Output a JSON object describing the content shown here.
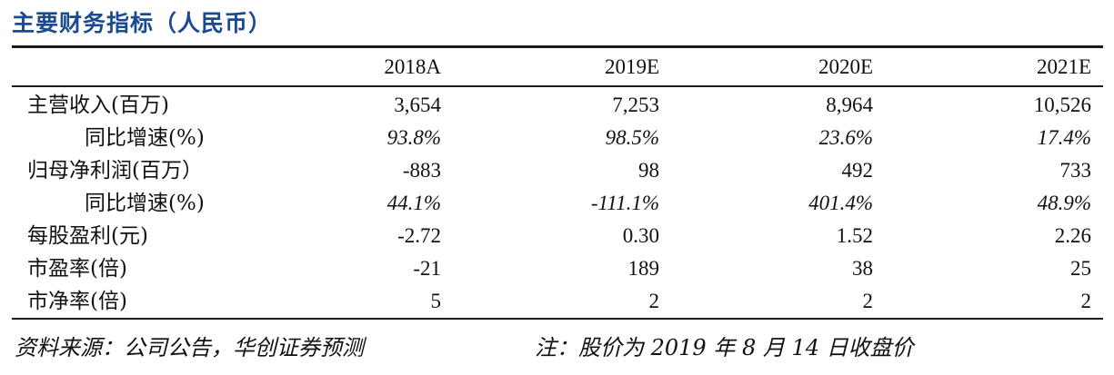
{
  "title": "主要财务指标（人民币）",
  "columns": [
    "2018A",
    "2019E",
    "2020E",
    "2021E"
  ],
  "rows": [
    {
      "label": "主营收入(百万)",
      "values": [
        "3,654",
        "7,253",
        "8,964",
        "10,526"
      ]
    },
    {
      "label": "同比增速(%)",
      "values": [
        "93.8%",
        "98.5%",
        "23.6%",
        "17.4%"
      ]
    },
    {
      "label": "归母净利润(百万）",
      "values": [
        "-883",
        "98",
        "492",
        "733"
      ]
    },
    {
      "label": "同比增速(%)",
      "values": [
        "44.1%",
        "-111.1%",
        "401.4%",
        "48.9%"
      ]
    },
    {
      "label": "每股盈利(元)",
      "values": [
        "-2.72",
        "0.30",
        "1.52",
        "2.26"
      ]
    },
    {
      "label": "市盈率(倍)",
      "values": [
        "-21",
        "189",
        "38",
        "25"
      ]
    },
    {
      "label": "市净率(倍)",
      "values": [
        "5",
        "2",
        "2",
        "2"
      ]
    }
  ],
  "footer": {
    "source": "资料来源：公司公告，华创证券预测",
    "note": "注：股价为 2019 年 8 月 14 日收盘价"
  },
  "colors": {
    "title": "#1a4a92",
    "rules": "#1a1a1a",
    "text": "#111111"
  }
}
